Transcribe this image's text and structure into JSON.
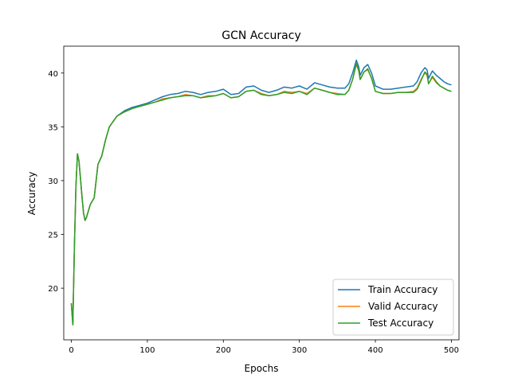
{
  "chart_data": {
    "type": "line",
    "title": "GCN Accuracy",
    "xlabel": "Epochs",
    "ylabel": "Accuracy",
    "xlim": [
      -10,
      510
    ],
    "ylim": [
      15.2,
      42.5
    ],
    "xticks": [
      0,
      100,
      200,
      300,
      400,
      500
    ],
    "yticks": [
      20,
      25,
      30,
      35,
      40
    ],
    "grid": false,
    "legend_position": "lower-right",
    "x": [
      0,
      2,
      4,
      6,
      8,
      10,
      12,
      14,
      16,
      18,
      20,
      25,
      30,
      35,
      40,
      45,
      50,
      55,
      60,
      70,
      80,
      90,
      100,
      110,
      120,
      130,
      140,
      150,
      160,
      170,
      180,
      190,
      200,
      210,
      220,
      230,
      240,
      250,
      260,
      270,
      280,
      290,
      300,
      310,
      320,
      330,
      340,
      350,
      360,
      365,
      370,
      375,
      378,
      380,
      385,
      390,
      395,
      400,
      410,
      420,
      430,
      440,
      450,
      455,
      460,
      465,
      468,
      470,
      475,
      480,
      485,
      490,
      495,
      500
    ],
    "series": [
      {
        "name": "Train Accuracy",
        "color": "#1f77b4",
        "values": [
          18.6,
          16.6,
          24.0,
          29.5,
          32.5,
          31.8,
          30.2,
          28.5,
          27.0,
          26.3,
          26.6,
          27.8,
          28.4,
          31.5,
          32.3,
          33.8,
          35.0,
          35.5,
          36.0,
          36.5,
          36.8,
          37.0,
          37.2,
          37.5,
          37.8,
          38.0,
          38.1,
          38.3,
          38.2,
          38.0,
          38.2,
          38.3,
          38.5,
          38.0,
          38.1,
          38.7,
          38.8,
          38.4,
          38.2,
          38.4,
          38.7,
          38.6,
          38.8,
          38.5,
          39.1,
          38.9,
          38.7,
          38.6,
          38.6,
          39.0,
          40.0,
          41.2,
          40.6,
          39.8,
          40.5,
          40.8,
          40.0,
          38.8,
          38.5,
          38.5,
          38.6,
          38.7,
          38.8,
          39.2,
          40.0,
          40.5,
          40.3,
          39.5,
          40.2,
          39.8,
          39.5,
          39.2,
          39.0,
          38.9
        ]
      },
      {
        "name": "Valid Accuracy",
        "color": "#ff7f0e",
        "values": [
          18.6,
          16.6,
          24.0,
          29.5,
          32.5,
          31.8,
          30.2,
          28.5,
          27.0,
          26.3,
          26.6,
          27.8,
          28.4,
          31.5,
          32.3,
          33.8,
          35.0,
          35.5,
          36.0,
          36.4,
          36.7,
          36.9,
          37.1,
          37.3,
          37.6,
          37.7,
          37.8,
          38.0,
          37.9,
          37.7,
          37.9,
          37.9,
          38.1,
          37.7,
          37.8,
          38.3,
          38.4,
          38.1,
          37.9,
          38.0,
          38.3,
          38.2,
          38.3,
          38.1,
          38.6,
          38.4,
          38.2,
          38.1,
          38.0,
          38.4,
          39.4,
          40.8,
          40.2,
          39.4,
          40.1,
          40.3,
          39.5,
          38.3,
          38.1,
          38.1,
          38.2,
          38.2,
          38.3,
          38.6,
          39.4,
          40.0,
          39.8,
          39.0,
          39.6,
          39.1,
          38.8,
          38.6,
          38.4,
          38.3
        ]
      },
      {
        "name": "Test Accuracy",
        "color": "#2ca02c",
        "values": [
          18.6,
          16.6,
          24.0,
          29.5,
          32.5,
          31.8,
          30.2,
          28.5,
          27.0,
          26.3,
          26.6,
          27.8,
          28.4,
          31.5,
          32.3,
          33.8,
          35.0,
          35.5,
          36.0,
          36.4,
          36.7,
          36.9,
          37.1,
          37.3,
          37.5,
          37.7,
          37.8,
          37.9,
          37.9,
          37.7,
          37.8,
          37.9,
          38.1,
          37.7,
          37.8,
          38.3,
          38.4,
          38.0,
          37.9,
          38.0,
          38.2,
          38.1,
          38.3,
          38.0,
          38.6,
          38.4,
          38.2,
          38.0,
          38.0,
          38.4,
          39.4,
          40.9,
          40.3,
          39.4,
          40.1,
          40.4,
          39.5,
          38.3,
          38.1,
          38.1,
          38.2,
          38.2,
          38.2,
          38.5,
          39.3,
          40.1,
          39.9,
          39.0,
          39.7,
          39.2,
          38.8,
          38.6,
          38.4,
          38.3
        ]
      }
    ]
  }
}
